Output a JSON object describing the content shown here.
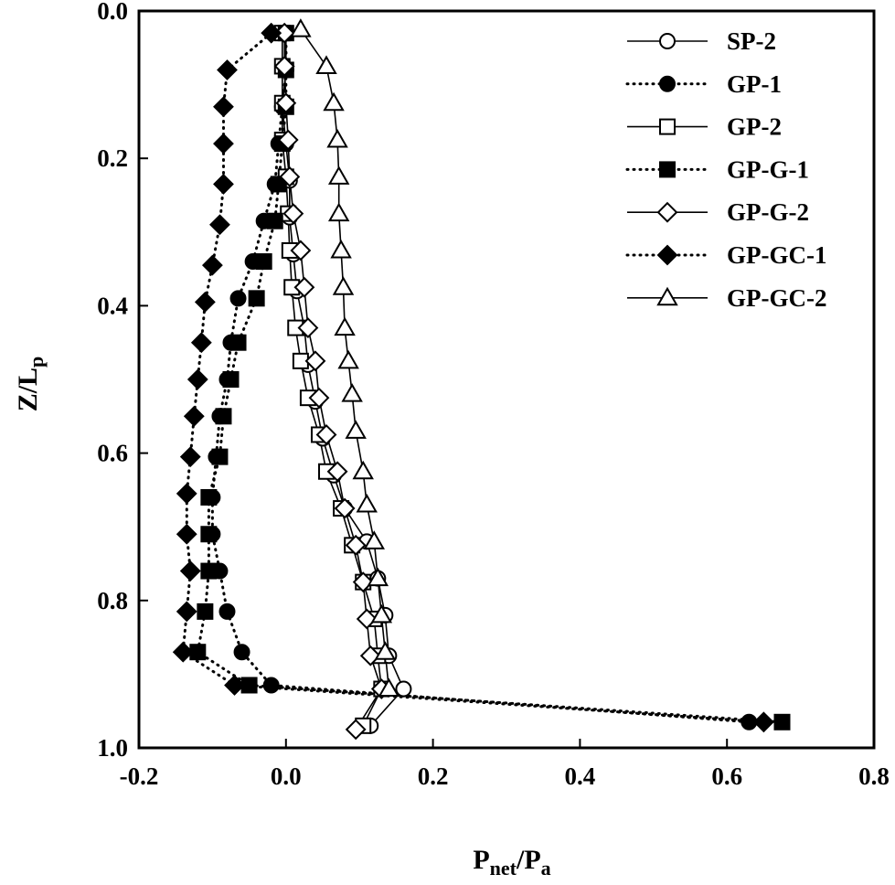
{
  "chart_data": {
    "type": "line",
    "xlabel": {
      "main": "P",
      "sub1": "net",
      "mid": "/P",
      "sub2": "a"
    },
    "ylabel": {
      "main": "Z/L",
      "sub": "p"
    },
    "xlim": [
      -0.2,
      0.8
    ],
    "ylim": [
      0.0,
      1.0
    ],
    "y_inverted": true,
    "x_ticks": [
      "-0.2",
      "0.0",
      "0.2",
      "0.4",
      "0.6",
      "0.8"
    ],
    "y_ticks": [
      "0.0",
      "0.2",
      "0.4",
      "0.6",
      "0.8",
      "1.0"
    ],
    "grid": false,
    "legend_position": "top-right",
    "series": [
      {
        "name": "SP-2",
        "marker": "circle",
        "fill": "open",
        "line": "solid",
        "points": [
          [
            0.0,
            0.03
          ],
          [
            0.0,
            0.08
          ],
          [
            -0.005,
            0.13
          ],
          [
            0.0,
            0.18
          ],
          [
            0.005,
            0.23
          ],
          [
            0.005,
            0.28
          ],
          [
            0.01,
            0.33
          ],
          [
            0.015,
            0.38
          ],
          [
            0.025,
            0.43
          ],
          [
            0.03,
            0.48
          ],
          [
            0.04,
            0.53
          ],
          [
            0.05,
            0.58
          ],
          [
            0.065,
            0.63
          ],
          [
            0.08,
            0.675
          ],
          [
            0.11,
            0.72
          ],
          [
            0.125,
            0.77
          ],
          [
            0.135,
            0.82
          ],
          [
            0.14,
            0.875
          ],
          [
            0.16,
            0.92
          ],
          [
            0.115,
            0.97
          ]
        ]
      },
      {
        "name": "GP-1",
        "marker": "circle",
        "fill": "filled",
        "line": "dotted",
        "points": [
          [
            0.0,
            0.03
          ],
          [
            0.0,
            0.08
          ],
          [
            -0.005,
            0.13
          ],
          [
            -0.01,
            0.18
          ],
          [
            -0.015,
            0.235
          ],
          [
            -0.03,
            0.285
          ],
          [
            -0.045,
            0.34
          ],
          [
            -0.065,
            0.39
          ],
          [
            -0.075,
            0.45
          ],
          [
            -0.08,
            0.5
          ],
          [
            -0.09,
            0.55
          ],
          [
            -0.095,
            0.605
          ],
          [
            -0.1,
            0.66
          ],
          [
            -0.1,
            0.71
          ],
          [
            -0.09,
            0.76
          ],
          [
            -0.08,
            0.815
          ],
          [
            -0.06,
            0.87
          ],
          [
            -0.02,
            0.915
          ],
          [
            0.63,
            0.965
          ]
        ]
      },
      {
        "name": "GP-2",
        "marker": "square",
        "fill": "open",
        "line": "solid",
        "points": [
          [
            -0.005,
            0.03
          ],
          [
            -0.005,
            0.075
          ],
          [
            -0.005,
            0.125
          ],
          [
            -0.005,
            0.175
          ],
          [
            0.0,
            0.225
          ],
          [
            0.003,
            0.275
          ],
          [
            0.005,
            0.325
          ],
          [
            0.008,
            0.375
          ],
          [
            0.013,
            0.43
          ],
          [
            0.02,
            0.475
          ],
          [
            0.03,
            0.525
          ],
          [
            0.045,
            0.575
          ],
          [
            0.055,
            0.625
          ],
          [
            0.075,
            0.675
          ],
          [
            0.09,
            0.725
          ],
          [
            0.105,
            0.775
          ],
          [
            0.12,
            0.825
          ],
          [
            0.125,
            0.875
          ],
          [
            0.13,
            0.92
          ],
          [
            0.105,
            0.97
          ]
        ]
      },
      {
        "name": "GP-G-1",
        "marker": "square",
        "fill": "filled",
        "line": "dotted",
        "points": [
          [
            0.0,
            0.03
          ],
          [
            0.0,
            0.08
          ],
          [
            0.0,
            0.13
          ],
          [
            -0.005,
            0.18
          ],
          [
            -0.01,
            0.235
          ],
          [
            -0.015,
            0.285
          ],
          [
            -0.03,
            0.34
          ],
          [
            -0.04,
            0.39
          ],
          [
            -0.065,
            0.45
          ],
          [
            -0.075,
            0.5
          ],
          [
            -0.085,
            0.55
          ],
          [
            -0.09,
            0.605
          ],
          [
            -0.105,
            0.66
          ],
          [
            -0.105,
            0.71
          ],
          [
            -0.105,
            0.76
          ],
          [
            -0.11,
            0.815
          ],
          [
            -0.12,
            0.87
          ],
          [
            -0.05,
            0.915
          ],
          [
            0.675,
            0.965
          ]
        ]
      },
      {
        "name": "GP-G-2",
        "marker": "diamond",
        "fill": "open",
        "line": "solid",
        "points": [
          [
            -0.002,
            0.03
          ],
          [
            -0.002,
            0.075
          ],
          [
            0.0,
            0.125
          ],
          [
            0.003,
            0.175
          ],
          [
            0.005,
            0.225
          ],
          [
            0.01,
            0.275
          ],
          [
            0.02,
            0.325
          ],
          [
            0.025,
            0.375
          ],
          [
            0.03,
            0.43
          ],
          [
            0.04,
            0.475
          ],
          [
            0.045,
            0.525
          ],
          [
            0.055,
            0.575
          ],
          [
            0.07,
            0.625
          ],
          [
            0.08,
            0.675
          ],
          [
            0.095,
            0.725
          ],
          [
            0.105,
            0.775
          ],
          [
            0.11,
            0.825
          ],
          [
            0.115,
            0.875
          ],
          [
            0.13,
            0.92
          ],
          [
            0.095,
            0.975
          ]
        ]
      },
      {
        "name": "GP-GC-1",
        "marker": "diamond",
        "fill": "filled",
        "line": "dotted",
        "points": [
          [
            -0.02,
            0.03
          ],
          [
            -0.08,
            0.08
          ],
          [
            -0.085,
            0.13
          ],
          [
            -0.085,
            0.18
          ],
          [
            -0.085,
            0.235
          ],
          [
            -0.09,
            0.29
          ],
          [
            -0.1,
            0.345
          ],
          [
            -0.11,
            0.395
          ],
          [
            -0.115,
            0.45
          ],
          [
            -0.12,
            0.5
          ],
          [
            -0.125,
            0.55
          ],
          [
            -0.13,
            0.605
          ],
          [
            -0.135,
            0.655
          ],
          [
            -0.135,
            0.71
          ],
          [
            -0.13,
            0.76
          ],
          [
            -0.135,
            0.815
          ],
          [
            -0.14,
            0.87
          ],
          [
            -0.07,
            0.915
          ],
          [
            0.65,
            0.965
          ]
        ]
      },
      {
        "name": "GP-GC-2",
        "marker": "triangle",
        "fill": "open",
        "line": "solid",
        "points": [
          [
            0.02,
            0.025
          ],
          [
            0.055,
            0.075
          ],
          [
            0.065,
            0.125
          ],
          [
            0.07,
            0.175
          ],
          [
            0.072,
            0.225
          ],
          [
            0.072,
            0.275
          ],
          [
            0.075,
            0.325
          ],
          [
            0.078,
            0.375
          ],
          [
            0.08,
            0.43
          ],
          [
            0.085,
            0.475
          ],
          [
            0.09,
            0.52
          ],
          [
            0.095,
            0.57
          ],
          [
            0.105,
            0.625
          ],
          [
            0.11,
            0.67
          ],
          [
            0.12,
            0.72
          ],
          [
            0.125,
            0.77
          ],
          [
            0.13,
            0.82
          ],
          [
            0.135,
            0.87
          ],
          [
            0.14,
            0.92
          ]
        ]
      }
    ]
  }
}
